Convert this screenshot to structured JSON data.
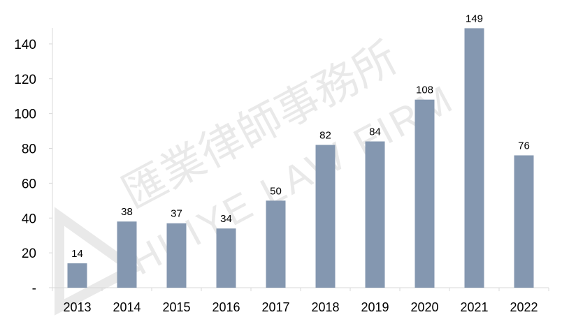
{
  "chart_data": {
    "type": "bar",
    "title": "",
    "xlabel": "",
    "ylabel": "",
    "categories": [
      "2013",
      "2014",
      "2015",
      "2016",
      "2017",
      "2018",
      "2019",
      "2020",
      "2021",
      "2022"
    ],
    "values": [
      14,
      38,
      37,
      34,
      50,
      82,
      84,
      108,
      149,
      76
    ],
    "data_labels": [
      "14",
      "38",
      "37",
      "34",
      "50",
      "82",
      "84",
      "108",
      "149",
      "76"
    ],
    "ylim": [
      0,
      160
    ],
    "yticks": [
      0,
      20,
      40,
      60,
      80,
      100,
      120,
      140
    ],
    "ytick_labels": [
      "-",
      "20",
      "40",
      "60",
      "80",
      "100",
      "120",
      "140"
    ],
    "grid": false,
    "legend": "none",
    "bar_color": "#8497b0"
  },
  "watermark": {
    "chinese": "匯業律師事務所",
    "english": "HUIYE LAW FIRM"
  }
}
